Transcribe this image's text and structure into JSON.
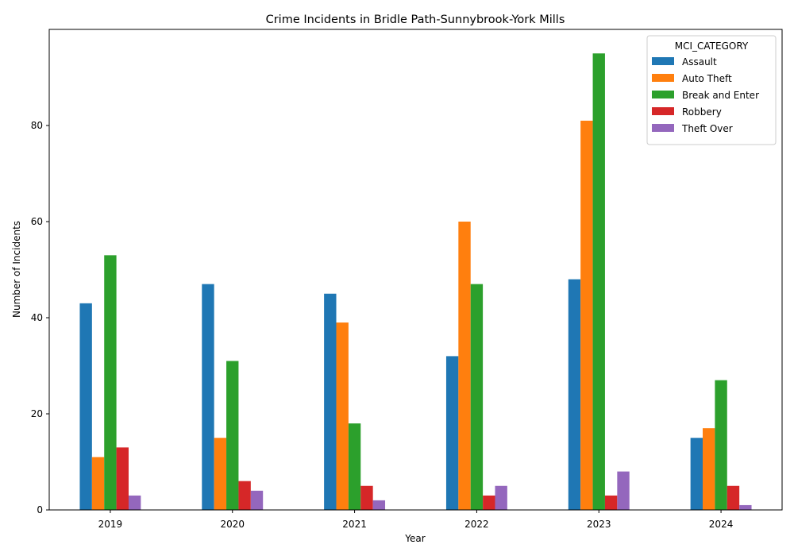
{
  "chart_data": {
    "type": "bar",
    "title": "Crime Incidents in Bridle Path-Sunnybrook-York Mills",
    "xlabel": "Year",
    "ylabel": "Number of Incidents",
    "categories": [
      "2019",
      "2020",
      "2021",
      "2022",
      "2023",
      "2024"
    ],
    "ylim": [
      0,
      100
    ],
    "yticks": [
      0,
      20,
      40,
      60,
      80
    ],
    "grid": false,
    "legend": {
      "title": "MCI_CATEGORY",
      "placement": "top-right"
    },
    "series": [
      {
        "name": "Assault",
        "color": "#1f77b4",
        "values": [
          43,
          47,
          45,
          32,
          48,
          15
        ]
      },
      {
        "name": "Auto Theft",
        "color": "#ff7f0e",
        "values": [
          11,
          15,
          39,
          60,
          81,
          17
        ]
      },
      {
        "name": "Break and Enter",
        "color": "#2ca02c",
        "values": [
          53,
          31,
          18,
          47,
          95,
          27
        ]
      },
      {
        "name": "Robbery",
        "color": "#d62728",
        "values": [
          13,
          6,
          5,
          3,
          3,
          5
        ]
      },
      {
        "name": "Theft Over",
        "color": "#9467bd",
        "values": [
          3,
          4,
          2,
          5,
          8,
          1
        ]
      }
    ]
  }
}
